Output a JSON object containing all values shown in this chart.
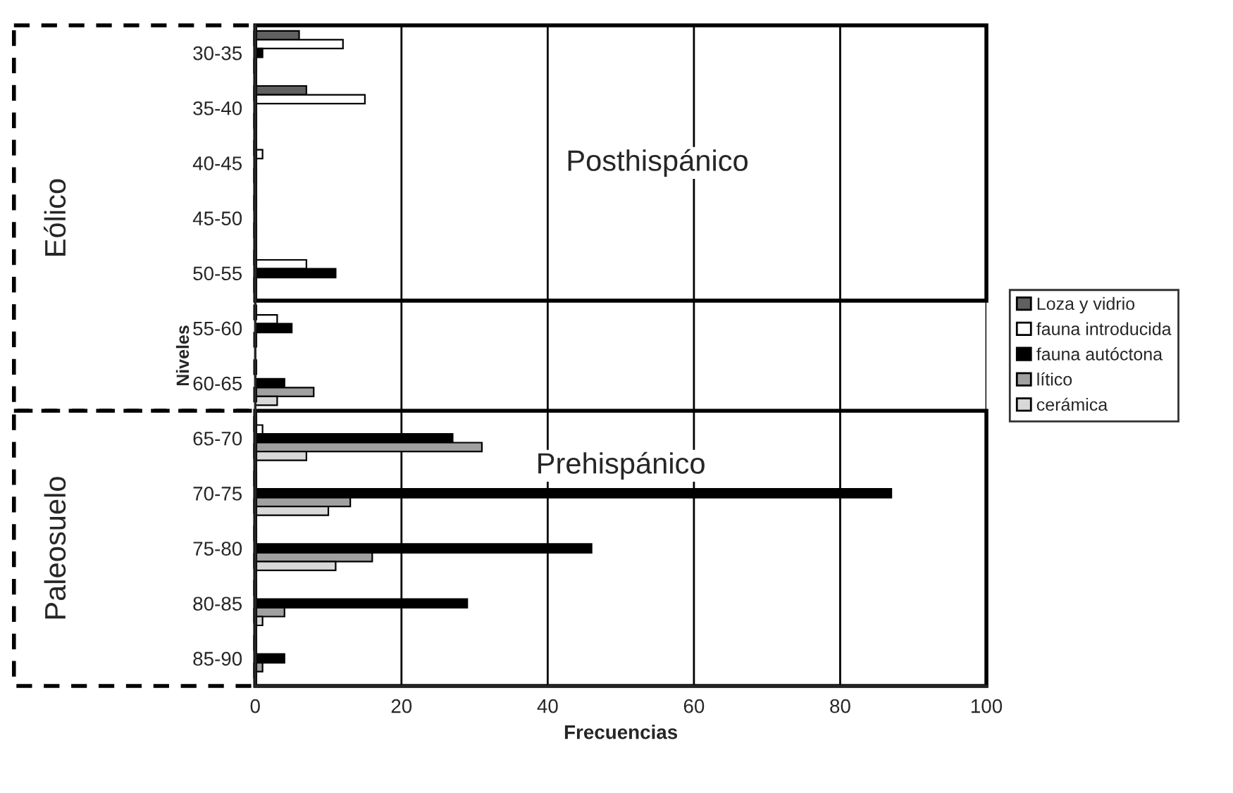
{
  "chart_data": {
    "type": "bar",
    "orientation": "horizontal",
    "categories": [
      "30-35",
      "35-40",
      "40-45",
      "45-50",
      "50-55",
      "55-60",
      "60-65",
      "65-70",
      "70-75",
      "75-80",
      "80-85",
      "85-90"
    ],
    "series": [
      {
        "name": "Loza y vidrio",
        "color": "#606060",
        "values": [
          6,
          7,
          null,
          null,
          null,
          null,
          null,
          null,
          null,
          null,
          null,
          null
        ]
      },
      {
        "name": "fauna introducida",
        "color": "#ffffff",
        "values": [
          12,
          15,
          1,
          null,
          7,
          3,
          null,
          1,
          null,
          null,
          null,
          null
        ]
      },
      {
        "name": "fauna autóctona",
        "color": "#000000",
        "values": [
          1,
          null,
          null,
          null,
          11,
          5,
          4,
          27,
          87,
          46,
          29,
          4
        ]
      },
      {
        "name": "lítico",
        "color": "#a0a0a0",
        "values": [
          null,
          null,
          null,
          null,
          null,
          null,
          8,
          31,
          13,
          16,
          4,
          1
        ]
      },
      {
        "name": "cerámica",
        "color": "#d8d8d8",
        "values": [
          null,
          null,
          null,
          null,
          null,
          null,
          3,
          7,
          10,
          11,
          1,
          null
        ]
      }
    ],
    "xlim": [
      0,
      100
    ],
    "xticks": [
      0,
      20,
      40,
      60,
      80,
      100
    ],
    "xlabel": "Frecuencias",
    "ylabel": "Niveles",
    "annotations": [
      "Posthispánico",
      "Prehispánico",
      "Eólico",
      "Paleosuelo"
    ],
    "grid": "x",
    "legend": "right"
  }
}
